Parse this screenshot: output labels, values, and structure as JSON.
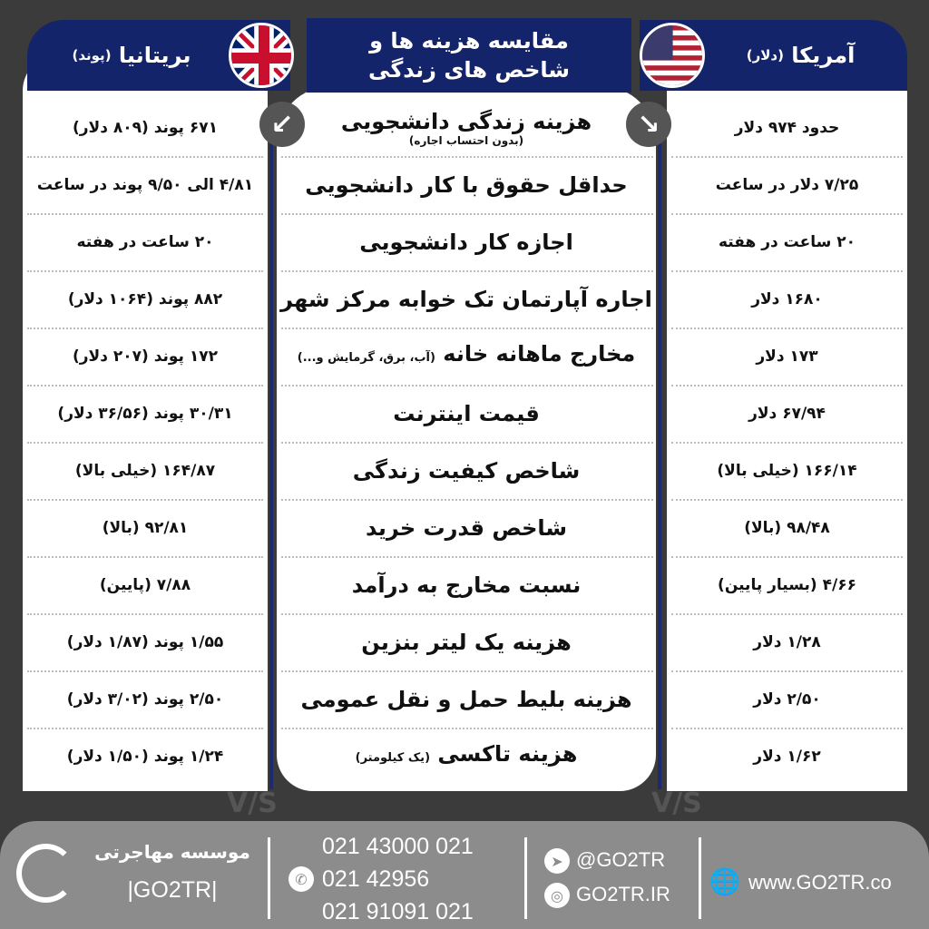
{
  "header": {
    "left_title": "بریتانیا",
    "left_unit": "(پوند)",
    "right_title": "آمریکا",
    "right_unit": "(دلار)",
    "center_line1": "مقایسه هزینه ها و",
    "center_line2": "شاخص های زندگی"
  },
  "icons": {
    "uk_flag": "uk-flag-icon",
    "us_flag": "us-flag-icon",
    "arrow_left": "↙",
    "arrow_right": "↘"
  },
  "rows": [
    {
      "label": "هزینه زندگی دانشجویی",
      "note": "(بدون احتساب اجاره)",
      "uk": "۶۷۱ پوند (۸۰۹ دلار)",
      "us": "حدود ۹۷۴ دلار"
    },
    {
      "label": "حداقل حقوق با کار دانشجویی",
      "uk": "۴/۸۱ الی ۹/۵۰ پوند در ساعت",
      "us": "۷/۲۵ دلار در ساعت"
    },
    {
      "label": "اجازه کار دانشجویی",
      "uk": "۲۰ ساعت در هفته",
      "us": "۲۰ ساعت در هفته"
    },
    {
      "label": "اجاره آپارتمان تک خوابه مرکز شهر",
      "uk": "۸۸۲ پوند (۱۰۶۴ دلار)",
      "us": "۱۶۸۰ دلار"
    },
    {
      "label": "مخارج ماهانه خانه",
      "inline_note": "(آب، برق، گرمایش و...)",
      "uk": "۱۷۲ پوند (۲۰۷ دلار)",
      "us": "۱۷۳ دلار"
    },
    {
      "label": "قیمت اینترنت",
      "uk": "۳۰/۳۱ پوند (۳۶/۵۶ دلار)",
      "us": "۶۷/۹۴ دلار"
    },
    {
      "label": "شاخص کیفیت زندگی",
      "uk": "۱۶۴/۸۷ (خیلی بالا)",
      "us": "۱۶۶/۱۴ (خیلی بالا)"
    },
    {
      "label": "شاخص قدرت خرید",
      "uk": "۹۲/۸۱ (بالا)",
      "us": "۹۸/۴۸ (بالا)"
    },
    {
      "label": "نسبت مخارج به درآمد",
      "uk": "۷/۸۸ (پایین)",
      "us": "۴/۶۶ (بسیار پایین)"
    },
    {
      "label": "هزینه یک لیتر بنزین",
      "uk": "۱/۵۵ پوند (۱/۸۷ دلار)",
      "us": "۱/۲۸ دلار"
    },
    {
      "label": "هزینه بلیط حمل و نقل عمومی",
      "uk": "۲/۵۰ پوند (۳/۰۲ دلار)",
      "us": "۲/۵۰ دلار"
    },
    {
      "label": "هزینه تاکسی",
      "inline_note": "(یک کیلومتر)",
      "uk": "۱/۲۴ پوند (۱/۵۰ دلار)",
      "us": "۱/۶۲ دلار"
    }
  ],
  "vs_label": "V/S",
  "footer": {
    "brand_fa": "موسسه مهاجرتی",
    "brand_en": "|GO2TR|",
    "phones": [
      "021 43000 021",
      "021 42956",
      "021 91091 021"
    ],
    "telegram": "@GO2TR",
    "instagram": "GO2TR.IR",
    "website": "www.GO2TR.co"
  },
  "colors": {
    "navy": "#14246b",
    "background": "#3b3b3b",
    "footer": "#8c8c8c"
  }
}
